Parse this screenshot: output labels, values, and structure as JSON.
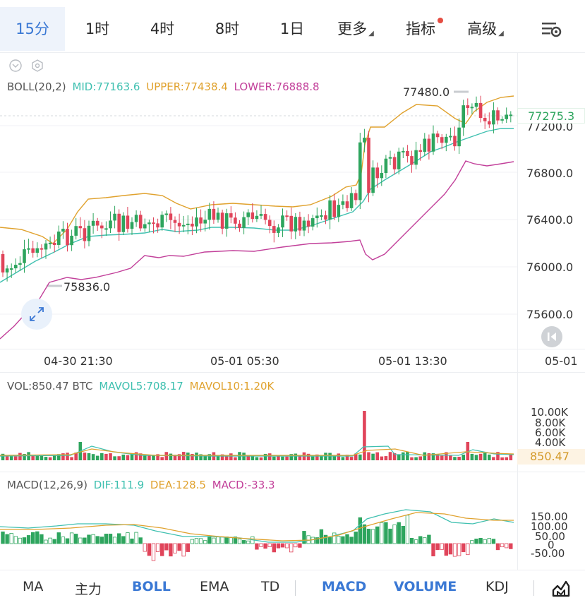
{
  "tabs": [
    {
      "label": "15分",
      "active": true
    },
    {
      "label": "1时"
    },
    {
      "label": "4时"
    },
    {
      "label": "8时"
    },
    {
      "label": "1日"
    },
    {
      "label": "更多",
      "dropdown": true
    },
    {
      "label": "指标",
      "badge": true
    },
    {
      "label": "高级",
      "dropdown": true
    }
  ],
  "boll": {
    "title": "BOLL(20,2)",
    "mid": "MID:77163.6",
    "upper": "UPPER:77438.4",
    "lower": "LOWER:76888.8"
  },
  "price_axis": [
    "77200.0",
    "76800.0",
    "76400.0",
    "76000.0",
    "75600.0"
  ],
  "current_price": "77275.3",
  "high_marker": "77480.0",
  "low_marker": "75836.0",
  "time_axis": [
    "04-30 21:30",
    "05-01 05:30",
    "05-01 13:30",
    "05-01"
  ],
  "vol": {
    "title": "VOL:850.47 BTC",
    "mavol5": "MAVOL5:708.17",
    "mavol10": "MAVOL10:1.20K"
  },
  "vol_axis": [
    "10.00K",
    "8.00K",
    "6.00K",
    "4.00K"
  ],
  "vol_current": "850.47",
  "macd": {
    "title": "MACD(12,26,9)",
    "dif": "DIF:111.9",
    "dea": "DEA:128.5",
    "macd": "MACD:-33.3"
  },
  "macd_axis": [
    "150.00",
    "100.00",
    "50.00",
    "0",
    "-50.00"
  ],
  "bottom_tabs": [
    {
      "label": "MA"
    },
    {
      "label": "主力"
    },
    {
      "label": "BOLL",
      "active": true
    },
    {
      "label": "EMA"
    },
    {
      "label": "TD"
    },
    {
      "label": "MACD",
      "active": true
    },
    {
      "label": "VOLUME",
      "active": true
    },
    {
      "label": "KDJ"
    }
  ],
  "colors": {
    "up": "#2ea55e",
    "down": "#e0445a",
    "mid": "#3fc0b0",
    "upper": "#e0a22e",
    "lower": "#c2409a",
    "accent": "#3a78d4"
  }
}
